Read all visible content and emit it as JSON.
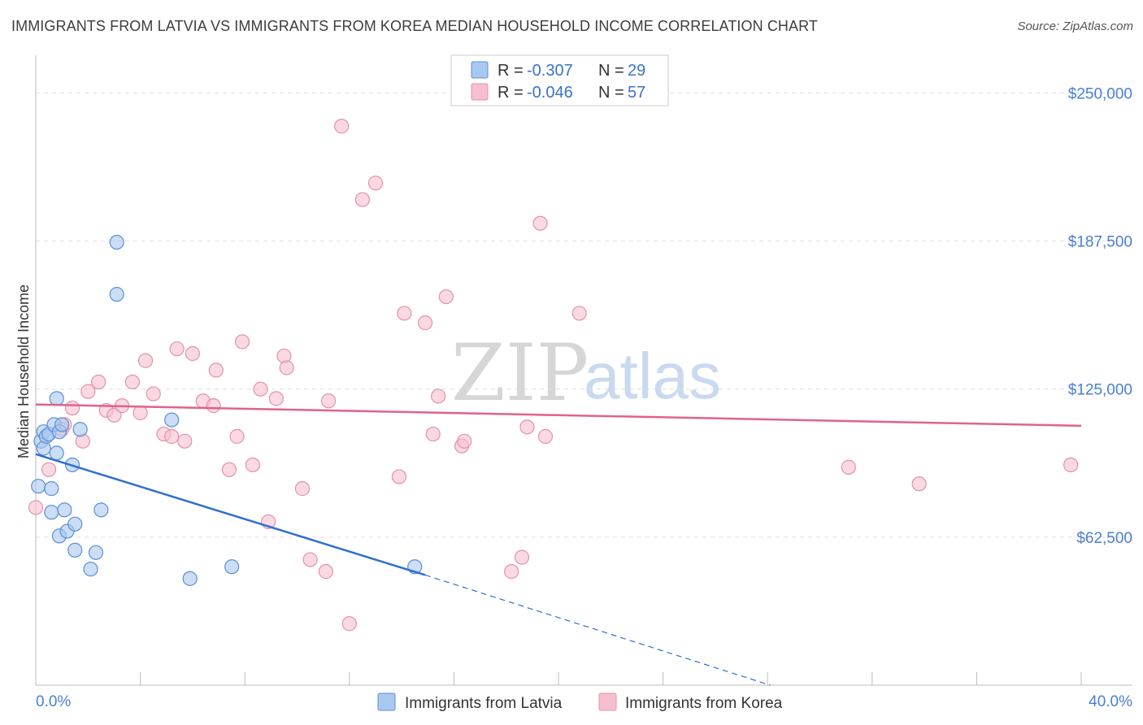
{
  "title": "IMMIGRANTS FROM LATVIA VS IMMIGRANTS FROM KOREA MEDIAN HOUSEHOLD INCOME CORRELATION CHART",
  "source": "Source: ZipAtlas.com",
  "watermark": {
    "zip": "ZIP",
    "atlas": "atlas"
  },
  "colors": {
    "latvia_fill": "#a9c8f0",
    "latvia_stroke": "#5b8fd6",
    "latvia_line": "#2f6fd0",
    "korea_fill": "#f6bfd0",
    "korea_stroke": "#e590aa",
    "korea_line": "#e0628a",
    "tick_text": "#4a7fd0",
    "grid": "#dddddd"
  },
  "legend": {
    "rows": [
      {
        "r_label": "R = ",
        "r_value": "-0.307",
        "n_label": "N = ",
        "n_value": "29"
      },
      {
        "r_label": "R = ",
        "r_value": "-0.046",
        "n_label": "N = ",
        "n_value": "57"
      }
    ]
  },
  "bottom_legend": [
    "Immigrants from Latvia",
    "Immigrants from Korea"
  ],
  "chart_data": {
    "type": "scatter",
    "title": "IMMIGRANTS FROM LATVIA VS IMMIGRANTS FROM KOREA MEDIAN HOUSEHOLD INCOME CORRELATION CHART",
    "xlabel": "",
    "ylabel": "Median Household Income",
    "xlim": [
      0,
      40
    ],
    "ylim": [
      0,
      262500
    ],
    "x_tick_labels": [
      "0.0%",
      "40.0%"
    ],
    "y_ticks": [
      62500,
      125000,
      187500,
      250000
    ],
    "y_tick_labels": [
      "$62,500",
      "$125,000",
      "$187,500",
      "$250,000"
    ],
    "series": [
      {
        "name": "Immigrants from Latvia",
        "r": -0.307,
        "n": 29,
        "points": [
          [
            0.1,
            84000
          ],
          [
            0.2,
            103000
          ],
          [
            0.3,
            100000
          ],
          [
            0.3,
            107000
          ],
          [
            0.4,
            105000
          ],
          [
            0.5,
            106000
          ],
          [
            0.6,
            83000
          ],
          [
            0.6,
            73000
          ],
          [
            0.7,
            110000
          ],
          [
            0.8,
            98000
          ],
          [
            0.8,
            121000
          ],
          [
            0.9,
            107000
          ],
          [
            0.9,
            63000
          ],
          [
            1.1,
            74000
          ],
          [
            1.2,
            65000
          ],
          [
            1.4,
            93000
          ],
          [
            1.5,
            68000
          ],
          [
            1.5,
            57000
          ],
          [
            1.7,
            108000
          ],
          [
            2.1,
            49000
          ],
          [
            2.3,
            56000
          ],
          [
            2.5,
            74000
          ],
          [
            3.1,
            187000
          ],
          [
            3.1,
            165000
          ],
          [
            5.2,
            112000
          ],
          [
            5.9,
            45000
          ],
          [
            7.5,
            50000
          ],
          [
            14.5,
            50000
          ],
          [
            1.0,
            110000
          ]
        ],
        "trend": {
          "x0": 0,
          "y0": 97500,
          "x1": 14.9,
          "y1": 46500,
          "dashed_to_x": 28.1,
          "dashed_to_y": 0
        }
      },
      {
        "name": "Immigrants from Korea",
        "r": -0.046,
        "n": 57,
        "points": [
          [
            0.0,
            75000
          ],
          [
            0.5,
            91000
          ],
          [
            1.0,
            108000
          ],
          [
            1.1,
            110000
          ],
          [
            1.4,
            117000
          ],
          [
            1.8,
            103000
          ],
          [
            2.0,
            124000
          ],
          [
            2.4,
            128000
          ],
          [
            2.7,
            116000
          ],
          [
            3.0,
            114000
          ],
          [
            3.3,
            118000
          ],
          [
            3.7,
            128000
          ],
          [
            4.0,
            115000
          ],
          [
            4.2,
            137000
          ],
          [
            4.5,
            123000
          ],
          [
            4.9,
            106000
          ],
          [
            5.2,
            105000
          ],
          [
            5.4,
            142000
          ],
          [
            5.7,
            103000
          ],
          [
            6.0,
            140000
          ],
          [
            6.4,
            120000
          ],
          [
            6.8,
            118000
          ],
          [
            6.9,
            133000
          ],
          [
            7.4,
            91000
          ],
          [
            7.7,
            105000
          ],
          [
            7.9,
            145000
          ],
          [
            8.3,
            93000
          ],
          [
            8.6,
            125000
          ],
          [
            8.9,
            69000
          ],
          [
            9.2,
            121000
          ],
          [
            9.5,
            139000
          ],
          [
            9.6,
            134000
          ],
          [
            10.2,
            83000
          ],
          [
            10.5,
            53000
          ],
          [
            11.1,
            48000
          ],
          [
            11.2,
            120000
          ],
          [
            11.7,
            236000
          ],
          [
            12.0,
            26000
          ],
          [
            12.5,
            205000
          ],
          [
            13.0,
            212000
          ],
          [
            13.9,
            88000
          ],
          [
            14.1,
            157000
          ],
          [
            14.9,
            153000
          ],
          [
            15.2,
            106000
          ],
          [
            15.4,
            122000
          ],
          [
            15.7,
            164000
          ],
          [
            16.3,
            101000
          ],
          [
            16.4,
            103000
          ],
          [
            18.2,
            48000
          ],
          [
            18.6,
            54000
          ],
          [
            18.8,
            109000
          ],
          [
            19.3,
            195000
          ],
          [
            19.5,
            105000
          ],
          [
            20.8,
            157000
          ],
          [
            31.1,
            92000
          ],
          [
            33.8,
            85000
          ],
          [
            39.6,
            93000
          ]
        ],
        "trend": {
          "x0": 0,
          "y0": 118500,
          "x1": 40,
          "y1": 109500
        }
      }
    ]
  }
}
